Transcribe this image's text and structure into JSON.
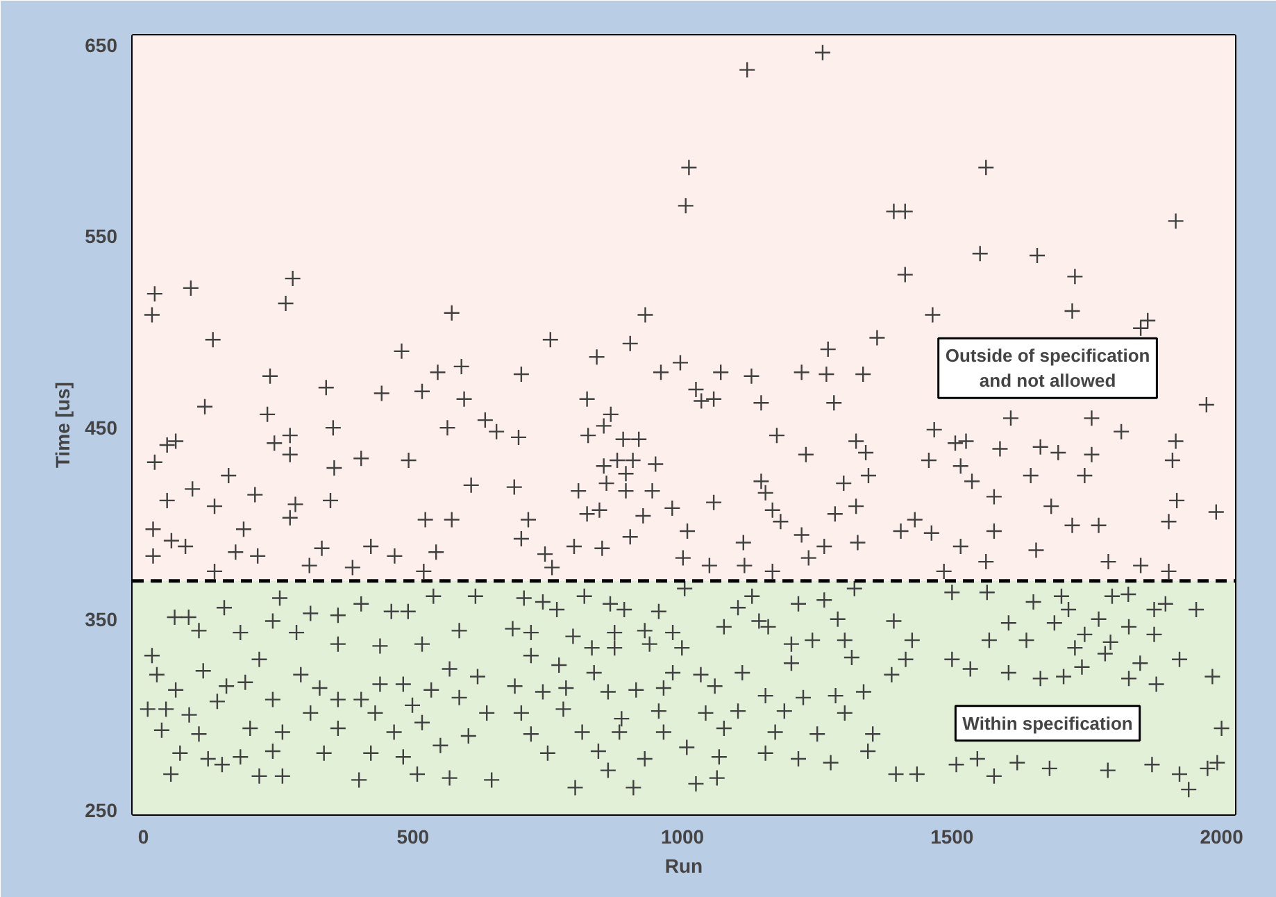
{
  "chart_data": {
    "type": "scatter",
    "xlabel": "Run",
    "ylabel": "Time [us]",
    "marker": "cross",
    "xlim": [
      -20,
      2025
    ],
    "ylim": [
      248,
      655
    ],
    "xticks": [
      0,
      500,
      1000,
      1500,
      2000
    ],
    "yticks": [
      250,
      350,
      450,
      550,
      650
    ],
    "ref_lines": [
      {
        "axis": "y",
        "value": 370,
        "color": "#000000",
        "line_style": "dashed"
      }
    ],
    "bands": [
      {
        "axis": "y",
        "from": 370,
        "to": 655,
        "label": "Outside of specification\nand not allowed",
        "color": "#fdefec"
      },
      {
        "axis": "y",
        "from": 248,
        "to": 370,
        "label": "Within specification",
        "color": "#e3f0d8"
      }
    ],
    "series": [
      {
        "color": "#404040",
        "x": [
          21,
          88,
          16,
          277,
          264,
          129,
          572,
          479,
          235,
          339,
          442,
          517,
          546,
          590,
          595,
          114,
          230,
          352,
          564,
          634,
          655,
          60,
          44,
          272,
          243,
          272,
          21,
          404,
          492,
          354,
          158,
          91,
          207,
          44,
          132,
          282,
          347,
          608,
          272,
          186,
          18,
          523,
          572,
          52,
          78,
          18,
          171,
          212,
          331,
          422,
          543,
          308,
          388,
          466,
          520,
          132,
          1260,
          1120,
          1012,
          1006,
          931,
          755,
          903,
          841,
          1270,
          1361,
          701,
          960,
          996,
          1071,
          1128,
          1221,
          1267,
          1335,
          823,
          867,
          854,
          1025,
          1035,
          1058,
          1146,
          1281,
          696,
          825,
          890,
          919,
          1175,
          1322,
          1340,
          1229,
          854,
          879,
          908,
          950,
          895,
          1345,
          688,
          807,
          859,
          895,
          944,
          1146,
          1154,
          1299,
          714,
          823,
          846,
          927,
          981,
          1058,
          1167,
          1182,
          1283,
          1322,
          701,
          799,
          851,
          903,
          1009,
          1113,
          1221,
          1263,
          1325,
          745,
          1001,
          1115,
          1050,
          1167,
          1234,
          758,
          1563,
          1392,
          1413,
          1915,
          1552,
          1658,
          1728,
          1413,
          1464,
          1723,
          1863,
          1850,
          1972,
          1609,
          1759,
          1814,
          1467,
          1506,
          1526,
          1589,
          1664,
          1697,
          1759,
          1915,
          1909,
          1457,
          1516,
          1537,
          1646,
          1746,
          1578,
          1684,
          1917,
          1990,
          1902,
          1431,
          1462,
          1405,
          1578,
          1723,
          1772,
          1516,
          1656,
          1563,
          1790,
          1850,
          1902,
          1485,
          253,
          150,
          58,
          84,
          103,
          240,
          310,
          361,
          404,
          460,
          491,
          538,
          616,
          180,
          284,
          361,
          439,
          517,
          586,
          16,
          215,
          25,
          111,
          292,
          189,
          439,
          482,
          568,
          620,
          60,
          154,
          327,
          8,
          42,
          137,
          240,
          361,
          404,
          499,
          534,
          586,
          85,
          198,
          310,
          430,
          517,
          637,
          34,
          103,
          258,
          361,
          465,
          603,
          68,
          120,
          180,
          240,
          335,
          422,
          482,
          551,
          51,
          146,
          215,
          258,
          400,
          508,
          568,
          646,
          706,
          741,
          767,
          818,
          866,
          892,
          956,
          1004,
          1103,
          1129,
          1215,
          1263,
          1319,
          685,
          719,
          797,
          874,
          930,
          982,
          1077,
          1142,
          1159,
          1288,
          832,
          874,
          939,
          999,
          1202,
          1241,
          1301,
          719,
          771,
          836,
          982,
          1034,
          1111,
          1202,
          1314,
          689,
          741,
          784,
          862,
          914,
          965,
          1060,
          1154,
          1224,
          1284,
          1336,
          701,
          779,
          887,
          956,
          1043,
          1103,
          1189,
          1301,
          719,
          814,
          883,
          965,
          1077,
          1172,
          1250,
          1353,
          750,
          844,
          930,
          1008,
          1068,
          1154,
          1215,
          1275,
          1344,
          862,
          801,
          909,
          1025,
          1064,
          1500,
          1565,
          1651,
          1703,
          1716,
          1797,
          1827,
          1875,
          1896,
          1953,
          1392,
          1426,
          1605,
          1569,
          1638,
          1690,
          1746,
          1772,
          1794,
          1828,
          1875,
          1728,
          1784,
          1414,
          1500,
          1534,
          1605,
          1741,
          1849,
          1922,
          1388,
          1664,
          1707,
          1828,
          1879,
          1983,
          2000,
          1396,
          1435,
          1508,
          1578,
          1547,
          1621,
          1681,
          1789,
          1871,
          1922,
          1939,
          1974,
          1992
        ],
        "values": [
          520,
          523,
          509,
          528,
          515,
          496,
          510,
          490,
          477,
          471,
          468,
          469,
          479,
          482,
          465,
          461,
          457,
          450,
          450,
          454,
          448,
          443,
          441,
          446,
          442,
          436,
          432,
          434,
          433,
          429,
          425,
          418,
          415,
          412,
          409,
          410,
          412,
          420,
          403,
          397,
          397,
          402,
          402,
          391,
          388,
          383,
          385,
          383,
          387,
          388,
          385,
          378,
          377,
          383,
          375,
          375,
          646,
          637,
          586,
          566,
          509,
          496,
          494,
          487,
          491,
          497,
          478,
          479,
          484,
          479,
          477,
          479,
          478,
          478,
          465,
          457,
          451,
          470,
          464,
          465,
          463,
          463,
          445,
          446,
          444,
          444,
          446,
          443,
          437,
          436,
          430,
          433,
          433,
          431,
          426,
          425,
          419,
          417,
          421,
          417,
          417,
          422,
          416,
          421,
          402,
          405,
          407,
          404,
          408,
          411,
          407,
          401,
          405,
          409,
          392,
          388,
          387,
          393,
          396,
          390,
          394,
          388,
          390,
          384,
          382,
          378,
          378,
          375,
          382,
          377,
          586,
          563,
          563,
          558,
          541,
          540,
          529,
          530,
          509,
          511,
          506,
          502,
          462,
          455,
          455,
          448,
          449,
          442,
          443,
          439,
          440,
          437,
          436,
          443,
          433,
          433,
          430,
          422,
          425,
          425,
          414,
          409,
          412,
          406,
          401,
          402,
          395,
          396,
          396,
          399,
          399,
          388,
          386,
          380,
          380,
          378,
          375,
          375,
          361,
          356,
          351,
          351,
          344,
          349,
          353,
          352,
          358,
          354,
          354,
          362,
          362,
          343,
          343,
          337,
          336,
          337,
          344,
          331,
          329,
          321,
          323,
          321,
          317,
          316,
          316,
          324,
          320,
          313,
          315,
          314,
          303,
          303,
          307,
          308,
          308,
          308,
          305,
          313,
          309,
          300,
          293,
          301,
          301,
          296,
          301,
          292,
          290,
          291,
          293,
          291,
          289,
          280,
          277,
          278,
          281,
          280,
          280,
          278,
          284,
          269,
          274,
          268,
          268,
          266,
          269,
          267,
          266,
          361,
          359,
          355,
          362,
          358,
          355,
          354,
          366,
          356,
          362,
          358,
          360,
          366,
          345,
          343,
          341,
          343,
          344,
          343,
          346,
          349,
          346,
          350,
          335,
          335,
          337,
          335,
          337,
          339,
          339,
          331,
          326,
          322,
          322,
          321,
          322,
          327,
          330,
          315,
          312,
          314,
          312,
          313,
          314,
          315,
          310,
          309,
          310,
          312,
          301,
          303,
          298,
          302,
          301,
          302,
          302,
          301,
          290,
          291,
          291,
          291,
          293,
          291,
          290,
          290,
          280,
          281,
          277,
          283,
          278,
          280,
          277,
          275,
          281,
          271,
          262,
          262,
          264,
          267,
          364,
          364,
          359,
          362,
          355,
          362,
          363,
          355,
          358,
          355,
          349,
          339,
          348,
          339,
          339,
          348,
          342,
          350,
          338,
          346,
          342,
          335,
          332,
          329,
          329,
          324,
          322,
          325,
          327,
          329,
          321,
          319,
          320,
          319,
          316,
          320,
          293,
          269,
          269,
          274,
          268,
          277,
          275,
          272,
          271,
          274,
          269,
          261,
          272,
          275
        ]
      }
    ]
  }
}
